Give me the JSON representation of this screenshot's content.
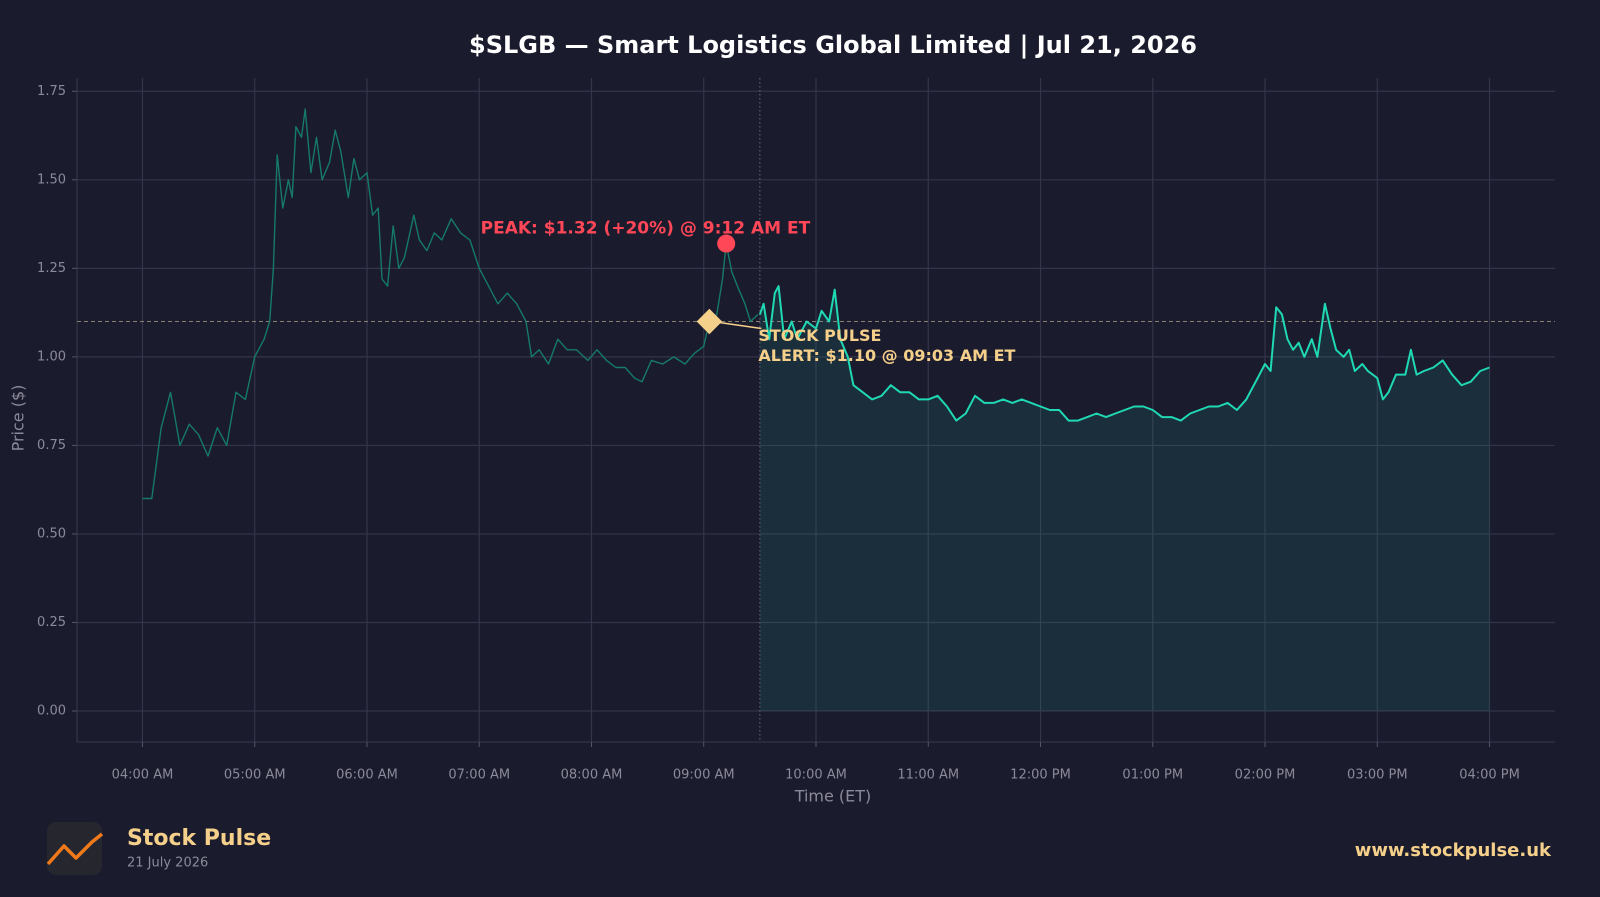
{
  "chart_data": {
    "type": "line",
    "title": "$SLGB — Smart Logistics Global Limited  |  Jul 21, 2026",
    "x_label": "Time (ET)",
    "y_label": "Price ($)",
    "x": [
      "04:00 AM",
      "04:05 AM",
      "04:10 AM",
      "04:15 AM",
      "04:20 AM",
      "04:25 AM",
      "04:30 AM",
      "04:35 AM",
      "04:40 AM",
      "04:45 AM",
      "04:50 AM",
      "04:55 AM",
      "05:00 AM",
      "05:05 AM",
      "05:08 AM",
      "05:10 AM",
      "05:12 AM",
      "05:15 AM",
      "05:18 AM",
      "05:20 AM",
      "05:22 AM",
      "05:25 AM",
      "05:27 AM",
      "05:30 AM",
      "05:33 AM",
      "05:36 AM",
      "05:40 AM",
      "05:43 AM",
      "05:46 AM",
      "05:50 AM",
      "05:53 AM",
      "05:56 AM",
      "06:00 AM",
      "06:03 AM",
      "06:06 AM",
      "06:08 AM",
      "06:11 AM",
      "06:14 AM",
      "06:17 AM",
      "06:20 AM",
      "06:25 AM",
      "06:28 AM",
      "06:32 AM",
      "06:36 AM",
      "06:40 AM",
      "06:45 AM",
      "06:50 AM",
      "06:55 AM",
      "07:00 AM",
      "07:05 AM",
      "07:10 AM",
      "07:15 AM",
      "07:20 AM",
      "07:25 AM",
      "07:28 AM",
      "07:32 AM",
      "07:37 AM",
      "07:42 AM",
      "07:47 AM",
      "07:52 AM",
      "07:58 AM",
      "08:03 AM",
      "08:08 AM",
      "08:13 AM",
      "08:18 AM",
      "08:23 AM",
      "08:27 AM",
      "08:32 AM",
      "08:38 AM",
      "08:44 AM",
      "08:50 AM",
      "08:55 AM",
      "09:00 AM",
      "09:03 AM",
      "09:07 AM",
      "09:10 AM",
      "09:12 AM",
      "09:15 AM",
      "09:18 AM",
      "09:22 AM",
      "09:25 AM",
      "09:29 AM",
      "09:30 AM",
      "09:32 AM",
      "09:35 AM",
      "09:38 AM",
      "09:40 AM",
      "09:43 AM",
      "09:47 AM",
      "09:50 AM",
      "09:55 AM",
      "10:00 AM",
      "10:03 AM",
      "10:07 AM",
      "10:10 AM",
      "10:13 AM",
      "10:17 AM",
      "10:20 AM",
      "10:25 AM",
      "10:30 AM",
      "10:35 AM",
      "10:40 AM",
      "10:45 AM",
      "10:50 AM",
      "10:55 AM",
      "11:00 AM",
      "11:05 AM",
      "11:10 AM",
      "11:15 AM",
      "11:20 AM",
      "11:25 AM",
      "11:30 AM",
      "11:35 AM",
      "11:40 AM",
      "11:45 AM",
      "11:50 AM",
      "11:55 AM",
      "12:00 PM",
      "12:05 PM",
      "12:10 PM",
      "12:15 PM",
      "12:20 PM",
      "12:25 PM",
      "12:30 PM",
      "12:35 PM",
      "12:40 PM",
      "12:45 PM",
      "12:50 PM",
      "12:55 PM",
      "01:00 PM",
      "01:05 PM",
      "01:10 PM",
      "01:15 PM",
      "01:20 PM",
      "01:25 PM",
      "01:30 PM",
      "01:35 PM",
      "01:40 PM",
      "01:45 PM",
      "01:50 PM",
      "01:55 PM",
      "02:00 PM",
      "02:03 PM",
      "02:06 PM",
      "02:09 PM",
      "02:12 PM",
      "02:15 PM",
      "02:18 PM",
      "02:21 PM",
      "02:25 PM",
      "02:28 PM",
      "02:32 PM",
      "02:35 PM",
      "02:38 PM",
      "02:42 PM",
      "02:45 PM",
      "02:48 PM",
      "02:52 PM",
      "02:55 PM",
      "03:00 PM",
      "03:03 PM",
      "03:06 PM",
      "03:10 PM",
      "03:15 PM",
      "03:18 PM",
      "03:21 PM",
      "03:25 PM",
      "03:30 PM",
      "03:35 PM",
      "03:40 PM",
      "03:45 PM",
      "03:50 PM",
      "03:55 PM",
      "04:00 PM"
    ],
    "values": [
      0.6,
      0.6,
      0.8,
      0.9,
      0.75,
      0.81,
      0.78,
      0.72,
      0.8,
      0.75,
      0.9,
      0.88,
      1.0,
      1.05,
      1.1,
      1.25,
      1.57,
      1.42,
      1.5,
      1.45,
      1.65,
      1.62,
      1.7,
      1.52,
      1.62,
      1.5,
      1.55,
      1.64,
      1.58,
      1.45,
      1.56,
      1.5,
      1.52,
      1.4,
      1.42,
      1.22,
      1.2,
      1.37,
      1.25,
      1.28,
      1.4,
      1.33,
      1.3,
      1.35,
      1.33,
      1.39,
      1.35,
      1.33,
      1.25,
      1.2,
      1.15,
      1.18,
      1.15,
      1.1,
      1.0,
      1.02,
      0.98,
      1.05,
      1.02,
      1.02,
      0.99,
      1.02,
      0.99,
      0.97,
      0.97,
      0.94,
      0.93,
      0.99,
      0.98,
      1.0,
      0.98,
      1.01,
      1.03,
      1.1,
      1.12,
      1.22,
      1.32,
      1.24,
      1.2,
      1.15,
      1.1,
      1.12,
      1.12,
      1.15,
      1.05,
      1.18,
      1.2,
      1.05,
      1.1,
      1.05,
      1.1,
      1.08,
      1.13,
      1.1,
      1.19,
      1.05,
      1.0,
      0.92,
      0.9,
      0.88,
      0.89,
      0.92,
      0.9,
      0.9,
      0.88,
      0.88,
      0.89,
      0.86,
      0.82,
      0.84,
      0.89,
      0.87,
      0.87,
      0.88,
      0.87,
      0.88,
      0.87,
      0.86,
      0.85,
      0.85,
      0.82,
      0.82,
      0.83,
      0.84,
      0.83,
      0.84,
      0.85,
      0.86,
      0.86,
      0.85,
      0.83,
      0.83,
      0.82,
      0.84,
      0.85,
      0.86,
      0.86,
      0.87,
      0.85,
      0.88,
      0.93,
      0.98,
      0.96,
      1.14,
      1.12,
      1.05,
      1.02,
      1.04,
      1.0,
      1.05,
      1.0,
      1.15,
      1.08,
      1.02,
      1.0,
      1.02,
      0.96,
      0.98,
      0.96,
      0.94,
      0.88,
      0.9,
      0.95,
      0.95,
      1.02,
      0.95,
      0.96,
      0.97,
      0.99,
      0.95,
      0.92,
      0.93,
      0.96,
      0.97
    ],
    "color": "#1fd8b4",
    "premarket_color": "#157a68",
    "session_start": "09:30 AM",
    "xlim": [
      "03:25 AM",
      "04:35 PM"
    ],
    "xticks": [
      "04:00 AM",
      "05:00 AM",
      "06:00 AM",
      "07:00 AM",
      "08:00 AM",
      "09:00 AM",
      "10:00 AM",
      "11:00 AM",
      "12:00 PM",
      "01:00 PM",
      "02:00 PM",
      "03:00 PM",
      "04:00 PM"
    ],
    "ylim": [
      -0.0875,
      1.7875
    ],
    "yticks": [
      {
        "value": 0,
        "label": "0.00"
      },
      {
        "value": 0.25,
        "label": "0.25"
      },
      {
        "value": 0.5,
        "label": "0.50"
      },
      {
        "value": 0.75,
        "label": "0.75"
      },
      {
        "value": 1,
        "label": "1.00"
      },
      {
        "value": 1.25,
        "label": "1.25"
      },
      {
        "value": 1.5,
        "label": "1.50"
      },
      {
        "value": 1.75,
        "label": "1.75"
      }
    ],
    "grid": true,
    "annotations": [
      {
        "text": "PEAK: $1.32 (+20%) @ 9:12 AM ET",
        "x": "09:12 AM",
        "y": 1.32,
        "color": "#ff4757"
      },
      {
        "text": [
          "STOCK PULSE",
          "ALERT: $1.10 @ 09:03 AM ET"
        ],
        "x": "09:03 AM",
        "y": 1.1,
        "color": "#f5d08a"
      }
    ]
  },
  "footer": {
    "brand": "Stock Pulse",
    "date": "21 July 2026",
    "url": "www.stockpulse.uk"
  }
}
